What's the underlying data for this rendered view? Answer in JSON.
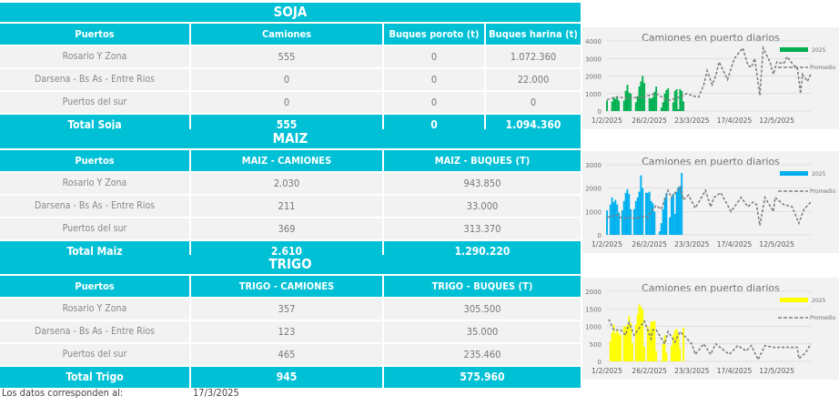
{
  "soja": {
    "title": "SOJA",
    "headers": [
      "Puertos",
      "Camiones",
      "Buques poroto (t)",
      "Buques harina (t)"
    ],
    "rows": [
      [
        "Rosario Y Zona",
        "555",
        "0",
        "1.072.360"
      ],
      [
        "Darsena - Bs As - Entre Rios",
        "0",
        "0",
        "22.000"
      ],
      [
        "Puertos del sur",
        "0",
        "0",
        "0"
      ]
    ],
    "total": [
      "Total Soja",
      "555",
      "0",
      "1.094.360"
    ]
  },
  "maiz": {
    "title": "MAIZ",
    "headers": [
      "Puertos",
      "MAIZ - CAMIONES",
      "MAIZ - BUQUES (T)"
    ],
    "rows": [
      [
        "Rosario Y Zona",
        "2.030",
        "943.850"
      ],
      [
        "Darsena - Bs As - Entre Rios",
        "211",
        "33.000"
      ],
      [
        "Puertos del sur",
        "369",
        "313.370"
      ]
    ],
    "total": [
      "Total Maiz",
      "2.610",
      "1.290.220"
    ]
  },
  "trigo": {
    "title": "TRIGO",
    "headers": [
      "Puertos",
      "TRIGO - CAMIONES",
      "TRIGO - BUQUES (T)"
    ],
    "rows": [
      [
        "Rosario Y Zona",
        "357",
        "305.500"
      ],
      [
        "Darsena - Bs As - Entre Rios",
        "123",
        "35.000"
      ],
      [
        "Puertos del sur",
        "465",
        "235.460"
      ]
    ],
    "total": [
      "Total Trigo",
      "945",
      "575.960"
    ]
  },
  "footer": {
    "label": "Los datos corresponden al:",
    "date": "17/3/2025"
  },
  "chart_data": [
    {
      "type": "bar+line",
      "title": "Camiones en puerto diarios",
      "xlim": [
        "1/2/2025",
        "1/6/2025"
      ],
      "ylim": [
        0,
        4000
      ],
      "yticks": [
        0,
        1000,
        2000,
        3000,
        4000
      ],
      "xticks": [
        "1/2/2025",
        "26/2/2025",
        "23/3/2025",
        "17/4/2025",
        "12/5/2025"
      ],
      "grid": true,
      "legend": "right",
      "series": [
        {
          "name": "2025",
          "type": "bar",
          "color": "#00b050",
          "x": [
            "1/2",
            "4/2",
            "5/2",
            "6/2",
            "7/2",
            "8/2",
            "11/2",
            "12/2",
            "13/2",
            "14/2",
            "15/2",
            "18/2",
            "19/2",
            "20/2",
            "21/2",
            "22/2",
            "23/2",
            "26/2",
            "27/2",
            "28/2",
            "1/3",
            "2/3",
            "5/3",
            "6/3",
            "7/3",
            "8/3",
            "9/3",
            "12/3",
            "13/3",
            "14/3",
            "15/3",
            "16/3",
            "17/3",
            "18/3"
          ],
          "y": [
            600,
            550,
            800,
            700,
            850,
            600,
            600,
            1150,
            1500,
            1050,
            1000,
            500,
            850,
            1400,
            1700,
            2000,
            1600,
            750,
            700,
            800,
            1100,
            1400,
            200,
            500,
            1000,
            1200,
            1300,
            500,
            1150,
            1250,
            100,
            1250,
            1150,
            550
          ]
        },
        {
          "name": "Promedio",
          "type": "line",
          "color": "#7f7f7f",
          "x": [
            "1/2",
            "6/2",
            "14/2",
            "22/2",
            "2/3",
            "9/3",
            "16/3",
            "20/3",
            "24/3",
            "27/3",
            "30/3",
            "1/4",
            "4/4",
            "6/4",
            "8/4",
            "11/4",
            "13/4",
            "17/4",
            "22/4",
            "25/4",
            "27/4",
            "29/4",
            "2/5",
            "4/5",
            "8/5",
            "10/5",
            "12/5",
            "16/5",
            "18/5",
            "22/5",
            "24/5",
            "26/5",
            "27/5",
            "30/5",
            "1/6"
          ],
          "y": [
            650,
            800,
            750,
            800,
            1000,
            600,
            800,
            1000,
            850,
            800,
            1500,
            2300,
            1500,
            2000,
            2800,
            2200,
            1800,
            3000,
            3600,
            2600,
            2500,
            3000,
            900,
            3600,
            2800,
            2100,
            2800,
            2700,
            3100,
            2600,
            2500,
            1000,
            2100,
            1700,
            2100
          ]
        }
      ]
    },
    {
      "type": "bar+line",
      "title": "Camiones en puerto diarios",
      "xlim": [
        "1/2/2025",
        "1/6/2025"
      ],
      "ylim": [
        0,
        3000
      ],
      "yticks": [
        0,
        1000,
        2000,
        3000
      ],
      "xticks": [
        "1/2/2025",
        "26/2/2025",
        "23/3/2025",
        "17/4/2025",
        "12/5/2025"
      ],
      "grid": true,
      "legend": "right",
      "series": [
        {
          "name": "2025",
          "type": "bar",
          "color": "#00b0f0",
          "x": [
            "1/2",
            "3/2",
            "4/2",
            "5/2",
            "6/2",
            "7/2",
            "8/2",
            "10/2",
            "11/2",
            "12/2",
            "13/2",
            "14/2",
            "15/2",
            "17/2",
            "18/2",
            "19/2",
            "20/2",
            "21/2",
            "22/2",
            "24/2",
            "25/2",
            "26/2",
            "27/2",
            "28/2",
            "1/3",
            "4/3",
            "5/3",
            "6/3",
            "7/3",
            "8/3",
            "10/3",
            "11/3",
            "12/3",
            "13/3",
            "14/3",
            "15/3",
            "16/3",
            "17/3"
          ],
          "y": [
            1050,
            1300,
            1600,
            1400,
            1500,
            1300,
            950,
            1050,
            1450,
            1800,
            1950,
            1750,
            1100,
            1100,
            1450,
            1600,
            1850,
            2550,
            2000,
            1800,
            1800,
            1850,
            1450,
            1350,
            1000,
            150,
            500,
            1100,
            1600,
            1800,
            750,
            1600,
            1750,
            900,
            1850,
            2050,
            2050,
            2650
          ]
        },
        {
          "name": "Promedio",
          "type": "line",
          "color": "#7f7f7f",
          "x": [
            "1/2",
            "7/2",
            "10/2",
            "15/2",
            "18/2",
            "22/2",
            "25/2",
            "27/2",
            "2/3",
            "5/3",
            "9/3",
            "11/3",
            "16/3",
            "18/3",
            "21/3",
            "25/3",
            "31/3",
            "3/4",
            "5/4",
            "9/4",
            "15/4",
            "21/4",
            "25/4",
            "28/4",
            "30/4",
            "2/5",
            "5/5",
            "10/5",
            "11/5",
            "16/5",
            "21/5",
            "25/5",
            "28/5",
            "1/6"
          ],
          "y": [
            750,
            850,
            700,
            750,
            700,
            800,
            750,
            1000,
            1250,
            1100,
            1900,
            1600,
            2050,
            1500,
            1700,
            1150,
            1900,
            1200,
            1600,
            1800,
            1000,
            1600,
            1200,
            1400,
            1300,
            400,
            1600,
            1000,
            1600,
            1300,
            1200,
            500,
            1100,
            1400
          ]
        }
      ]
    },
    {
      "type": "bar+line",
      "title": "Camiones en puerto diarios",
      "xlim": [
        "1/2/2025",
        "1/6/2025"
      ],
      "ylim": [
        0,
        2000
      ],
      "yticks": [
        0,
        500,
        1000,
        1500,
        2000
      ],
      "xticks": [
        "1/2/2025",
        "26/2/2025",
        "23/3/2025",
        "17/4/2025",
        "12/5/2025"
      ],
      "grid": true,
      "legend": "right",
      "series": [
        {
          "name": "2025",
          "type": "bar",
          "color": "#ffff00",
          "x": [
            "3/2",
            "4/2",
            "5/2",
            "6/2",
            "7/2",
            "8/2",
            "9/2",
            "11/2",
            "12/2",
            "13/2",
            "14/2",
            "15/2",
            "16/2",
            "18/2",
            "19/2",
            "20/2",
            "21/2",
            "22/2",
            "23/2",
            "25/2",
            "26/2",
            "27/2",
            "28/2",
            "1/3",
            "2/3",
            "5/3",
            "6/3",
            "7/3",
            "8/3",
            "11/3",
            "12/3",
            "13/3",
            "14/3",
            "15/3",
            "16/3",
            "18/3"
          ],
          "y": [
            580,
            820,
            1050,
            800,
            900,
            800,
            750,
            1000,
            1000,
            1050,
            1300,
            1100,
            530,
            1050,
            1350,
            1620,
            1560,
            1480,
            420,
            1000,
            900,
            1130,
            1140,
            1160,
            300,
            30,
            500,
            750,
            240,
            450,
            750,
            880,
            930,
            800,
            380,
            960
          ]
        },
        {
          "name": "Promedio",
          "type": "line",
          "color": "#7f7f7f",
          "x": [
            "2/2",
            "5/2",
            "9/2",
            "12/2",
            "14/2",
            "17/2",
            "23/2",
            "27/2",
            "28/2",
            "2/3",
            "7/3",
            "9/3",
            "13/3",
            "16/3",
            "19/3",
            "23/3",
            "25/3",
            "30/3",
            "3/4",
            "6/4",
            "14/4",
            "19/4",
            "24/4",
            "27/4",
            "1/5",
            "5/5",
            "10/5",
            "18/5",
            "24/5",
            "25/5",
            "29/5",
            "1/6"
          ],
          "y": [
            1200,
            900,
            900,
            750,
            1100,
            750,
            1150,
            650,
            900,
            900,
            500,
            850,
            550,
            850,
            700,
            500,
            200,
            500,
            200,
            500,
            200,
            450,
            300,
            450,
            50,
            450,
            400,
            400,
            400,
            80,
            250,
            500
          ]
        }
      ]
    }
  ]
}
